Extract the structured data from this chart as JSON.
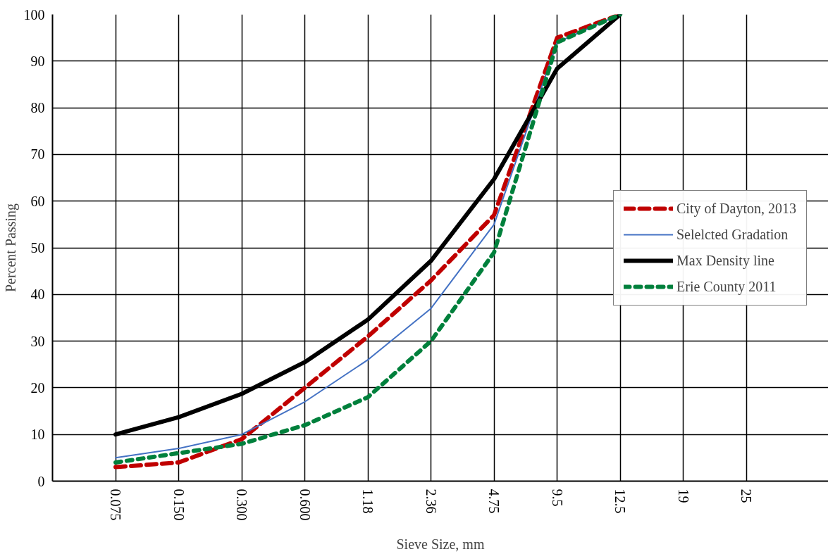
{
  "chart_data": {
    "type": "line",
    "xlabel": "Sieve Size, mm",
    "ylabel": "Percent Passing",
    "categories": [
      "0.075",
      "0.150",
      "0.300",
      "0.600",
      "1.18",
      "2.36",
      "4.75",
      "9.5",
      "12.5",
      "19",
      "25"
    ],
    "ylim": [
      0,
      100
    ],
    "yticks": [
      0,
      10,
      20,
      30,
      40,
      50,
      60,
      70,
      80,
      90,
      100
    ],
    "grid": true,
    "legend": "right",
    "series": [
      {
        "name": "City of Dayton, 2013",
        "color": "#c00000",
        "line_style": "dashed",
        "values": [
          3,
          4,
          9,
          20,
          31,
          43,
          57,
          95,
          100,
          null,
          null
        ]
      },
      {
        "name": "Selelcted Gradation",
        "color": "#4472c4",
        "line_style": "solid",
        "values": [
          5,
          7,
          10,
          17,
          26,
          37,
          55,
          94,
          100,
          null,
          null
        ]
      },
      {
        "name": "Max Density line",
        "color": "#000000",
        "line_style": "solid",
        "values": [
          10,
          13.7,
          18.7,
          25.5,
          34.6,
          47.2,
          64.7,
          88.4,
          100,
          null,
          null
        ]
      },
      {
        "name": "Erie County 2011",
        "color": "#00803c",
        "line_style": "dotted",
        "values": [
          4,
          6,
          8,
          12,
          18,
          30,
          49,
          94,
          100,
          null,
          null
        ]
      }
    ]
  }
}
